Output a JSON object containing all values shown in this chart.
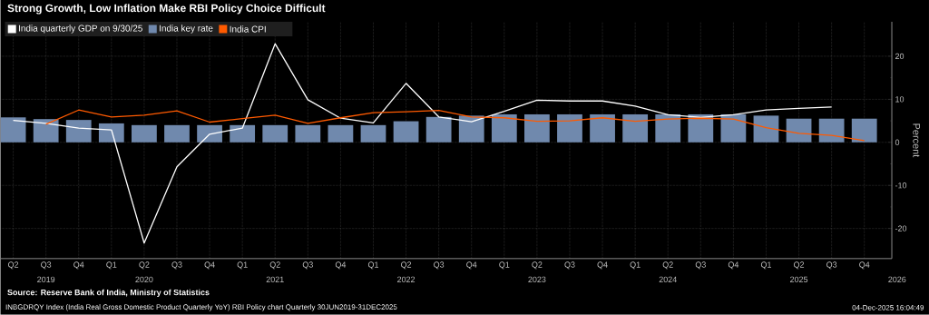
{
  "chart_data": {
    "type": "bar",
    "title": "Strong Growth, Low Inflation Make RBI Policy Choice Difficult",
    "ylabel": "Percent",
    "categories": [
      "Q2",
      "Q3",
      "Q4",
      "Q1",
      "Q2",
      "Q3",
      "Q4",
      "Q1",
      "Q2",
      "Q3",
      "Q4",
      "Q1",
      "Q2",
      "Q3",
      "Q4",
      "Q1",
      "Q2",
      "Q3",
      "Q4",
      "Q1",
      "Q2",
      "Q3",
      "Q4",
      "Q1",
      "Q2",
      "Q3",
      "Q4"
    ],
    "series": [
      {
        "name": "India quarterly GDP on 9/30/25",
        "type": "line",
        "color": "#ffffff",
        "values": [
          5.1,
          4.4,
          3.3,
          2.9,
          -23.4,
          -5.7,
          1.9,
          3.3,
          22.9,
          9.9,
          5.6,
          4.5,
          13.7,
          5.9,
          4.8,
          7.2,
          9.8,
          9.6,
          9.6,
          8.4,
          6.4,
          5.8,
          6.4,
          7.5,
          7.9,
          8.2,
          null
        ]
      },
      {
        "name": "India key rate",
        "color": "#7089ad",
        "values": [
          5.8,
          5.4,
          5.2,
          4.4,
          4.0,
          4.0,
          4.0,
          4.0,
          4.0,
          4.0,
          4.0,
          4.0,
          4.9,
          5.9,
          6.2,
          6.5,
          6.5,
          6.5,
          6.5,
          6.5,
          6.5,
          6.5,
          6.5,
          6.2,
          5.5,
          5.5,
          5.5
        ]
      },
      {
        "name": "India CPI",
        "type": "line",
        "color": "#ff5a00",
        "values": [
          null,
          4.2,
          7.5,
          5.9,
          6.3,
          7.3,
          4.7,
          5.5,
          6.3,
          4.4,
          5.7,
          6.9,
          7.1,
          7.4,
          5.9,
          5.7,
          4.9,
          5.0,
          5.7,
          4.9,
          5.4,
          5.6,
          5.4,
          3.4,
          2.1,
          1.6,
          0.4
        ]
      }
    ],
    "ylim": [
      -27,
      28
    ],
    "yticks": [
      -20,
      -10,
      0,
      10,
      20
    ],
    "grid": true,
    "legend": "top left",
    "annotations": [
      "2019",
      "2020",
      "2021",
      "2022",
      "2023",
      "2024",
      "2025",
      "2026",
      "Source: Reserve Bank of India, Ministry of Statistics",
      "INBGDRQY Index (India Real Gross Domestic Product Quarterly YoY) RBI Policy chart Quarterly 30JUN2019-31DEC2025",
      "04-Dec-2025 16:04:49"
    ]
  }
}
